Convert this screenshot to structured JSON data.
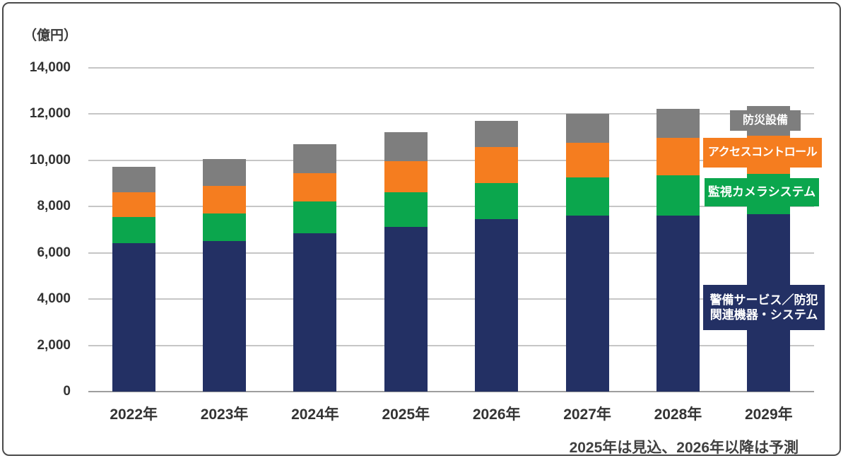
{
  "chart_data": {
    "type": "bar",
    "stacked": true,
    "unit_label": "（億円）",
    "categories": [
      "2022年",
      "2023年",
      "2024年",
      "2025年",
      "2026年",
      "2027年",
      "2028年",
      "2029年"
    ],
    "series": [
      {
        "key": "keibi",
        "name": "警備サービス／防犯関連機器・システム",
        "color": "#233064",
        "values": [
          6400,
          6500,
          6850,
          7100,
          7450,
          7600,
          7600,
          7650
        ]
      },
      {
        "key": "camera",
        "name": "監視カメラシステム",
        "color": "#0ba64d",
        "values": [
          1150,
          1200,
          1350,
          1500,
          1550,
          1650,
          1750,
          1750
        ]
      },
      {
        "key": "access",
        "name": "アクセスコントロール",
        "color": "#f57d1f",
        "values": [
          1050,
          1200,
          1250,
          1350,
          1550,
          1500,
          1600,
          1650
        ]
      },
      {
        "key": "bousai",
        "name": "防災設備",
        "color": "#7e7e7e",
        "values": [
          1100,
          1150,
          1250,
          1250,
          1150,
          1250,
          1250,
          1300
        ]
      }
    ],
    "totals": [
      9700,
      10050,
      10700,
      11200,
      11700,
      12000,
      12200,
      12350
    ],
    "ylim": [
      0,
      14000
    ],
    "ytick_step": 2000,
    "yticks": [
      "0",
      "2,000",
      "4,000",
      "6,000",
      "8,000",
      "10,000",
      "12,000",
      "14,000"
    ],
    "grid": true,
    "legend_position": "overlay-right",
    "note": "2025年は見込、2026年以降は予測"
  },
  "legend": {
    "bousai": "防災設備",
    "access": "アクセスコントロール",
    "camera": "監視カメラシステム",
    "keibi_line1": "警備サービス／防犯",
    "keibi_line2": "関連機器・システム"
  },
  "colors": {
    "navy": "#233064",
    "green": "#0ba64d",
    "orange": "#f57d1f",
    "gray": "#7e7e7e",
    "gridline": "#c6c6c6",
    "text": "#333333",
    "frame_border": "#4a4a4a"
  }
}
